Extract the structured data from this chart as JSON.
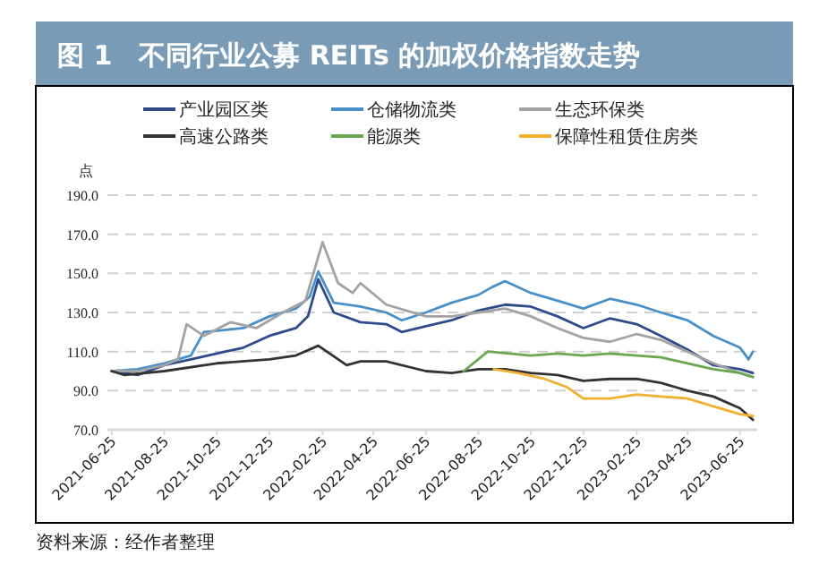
{
  "chart_data": {
    "type": "line",
    "title": "图 1　不同行业公募 REITs 的加权价格指数走势",
    "ylabel": "点",
    "annotations": [
      "资料来源：经作者整理"
    ],
    "xlim": [
      "2021-06-20",
      "2023-07-15"
    ],
    "xticks": [
      "2021-06-25",
      "2021-08-25",
      "2021-10-25",
      "2021-12-25",
      "2022-02-25",
      "2022-04-25",
      "2022-06-25",
      "2022-08-25",
      "2022-10-25",
      "2022-12-25",
      "2023-02-25",
      "2023-04-25",
      "2023-06-25"
    ],
    "ylim": [
      70,
      190
    ],
    "yticks": [
      {
        "value": 70,
        "label": "70.0"
      },
      {
        "value": 90,
        "label": "90.0"
      },
      {
        "value": 110,
        "label": "110.0"
      },
      {
        "value": 130,
        "label": "130.0"
      },
      {
        "value": 150,
        "label": "150.0"
      },
      {
        "value": 170,
        "label": "170.0"
      },
      {
        "value": 190,
        "label": "190.0"
      }
    ],
    "grid": "y",
    "legend": "top",
    "marker": "none",
    "line_style": "solid",
    "series": [
      {
        "name": "产业园区类",
        "color": "#2f4b8a",
        "x": [
          "2021-06-25",
          "2021-07-25",
          "2021-08-25",
          "2021-09-25",
          "2021-10-25",
          "2021-11-25",
          "2021-12-25",
          "2022-01-25",
          "2022-02-08",
          "2022-02-20",
          "2022-03-10",
          "2022-04-10",
          "2022-05-10",
          "2022-05-28",
          "2022-06-25",
          "2022-07-25",
          "2022-08-25",
          "2022-09-25",
          "2022-10-25",
          "2022-11-25",
          "2022-12-25",
          "2023-01-25",
          "2023-02-25",
          "2023-03-25",
          "2023-04-25",
          "2023-05-25",
          "2023-06-25",
          "2023-07-10"
        ],
        "values": [
          100,
          98,
          103,
          106,
          109,
          112,
          118,
          122,
          128,
          147,
          130,
          125,
          124,
          120,
          123,
          126,
          131,
          134,
          133,
          128,
          122,
          127,
          124,
          118,
          111,
          103,
          101,
          99
        ]
      },
      {
        "name": "仓储物流类",
        "color": "#4a90c8",
        "x": [
          "2021-06-25",
          "2021-07-25",
          "2021-08-25",
          "2021-09-25",
          "2021-10-10",
          "2021-11-25",
          "2021-12-25",
          "2022-01-25",
          "2022-02-10",
          "2022-02-20",
          "2022-03-10",
          "2022-04-10",
          "2022-05-10",
          "2022-05-28",
          "2022-06-25",
          "2022-07-25",
          "2022-08-25",
          "2022-09-10",
          "2022-09-25",
          "2022-10-25",
          "2022-11-25",
          "2022-12-25",
          "2023-01-25",
          "2023-02-25",
          "2023-03-25",
          "2023-04-25",
          "2023-05-25",
          "2023-06-25",
          "2023-07-05",
          "2023-07-10"
        ],
        "values": [
          100,
          101,
          104,
          108,
          120,
          122,
          128,
          132,
          138,
          151,
          135,
          133,
          130,
          126,
          130,
          135,
          139,
          143,
          146,
          140,
          136,
          132,
          137,
          134,
          130,
          126,
          118,
          112,
          106,
          110
        ]
      },
      {
        "name": "生态环保类",
        "color": "#a3a3a3",
        "x": [
          "2021-06-25",
          "2021-07-25",
          "2021-08-25",
          "2021-09-10",
          "2021-09-20",
          "2021-10-10",
          "2021-11-10",
          "2021-12-10",
          "2022-01-10",
          "2022-02-05",
          "2022-02-25",
          "2022-03-15",
          "2022-04-01",
          "2022-04-10",
          "2022-05-10",
          "2022-06-25",
          "2022-07-25",
          "2022-08-25",
          "2022-09-25",
          "2022-10-25",
          "2022-11-25",
          "2022-12-25",
          "2023-01-25",
          "2023-02-25",
          "2023-03-25",
          "2023-04-25",
          "2023-05-25",
          "2023-06-25",
          "2023-07-10"
        ],
        "values": [
          100,
          100,
          103,
          106,
          124,
          118,
          125,
          122,
          130,
          136,
          166,
          145,
          140,
          145,
          134,
          128,
          128,
          130,
          132,
          128,
          122,
          117,
          115,
          119,
          116,
          110,
          104,
          99,
          97
        ]
      },
      {
        "name": "高速公路类",
        "color": "#333333",
        "x": [
          "2021-06-25",
          "2021-07-10",
          "2021-08-25",
          "2021-10-25",
          "2021-12-25",
          "2022-01-25",
          "2022-02-20",
          "2022-03-25",
          "2022-04-10",
          "2022-05-10",
          "2022-06-25",
          "2022-07-25",
          "2022-08-25",
          "2022-09-25",
          "2022-10-25",
          "2022-11-25",
          "2022-12-25",
          "2023-01-25",
          "2023-02-25",
          "2023-03-25",
          "2023-04-25",
          "2023-05-25",
          "2023-06-25",
          "2023-07-10"
        ],
        "values": [
          100,
          98,
          100,
          104,
          106,
          108,
          113,
          103,
          105,
          105,
          100,
          99,
          101,
          101,
          99,
          98,
          95,
          96,
          96,
          94,
          90,
          87,
          81,
          75
        ]
      },
      {
        "name": "能源类",
        "color": "#6aa84f",
        "x": [
          "2022-08-08",
          "2022-09-05",
          "2022-10-25",
          "2022-11-25",
          "2022-12-25",
          "2023-01-25",
          "2023-02-25",
          "2023-03-25",
          "2023-04-25",
          "2023-05-25",
          "2023-06-25",
          "2023-07-10"
        ],
        "values": [
          100,
          110,
          108,
          109,
          108,
          109,
          108,
          107,
          104,
          101,
          99,
          97
        ]
      },
      {
        "name": "保障性租赁住房类",
        "color": "#f0b030",
        "x": [
          "2022-09-12",
          "2022-10-10",
          "2022-11-10",
          "2022-12-05",
          "2022-12-25",
          "2023-01-25",
          "2023-02-25",
          "2023-03-25",
          "2023-04-25",
          "2023-05-25",
          "2023-06-25",
          "2023-07-10"
        ],
        "values": [
          101,
          99,
          96,
          92,
          86,
          86,
          88,
          87,
          86,
          82,
          78,
          77
        ]
      }
    ]
  }
}
